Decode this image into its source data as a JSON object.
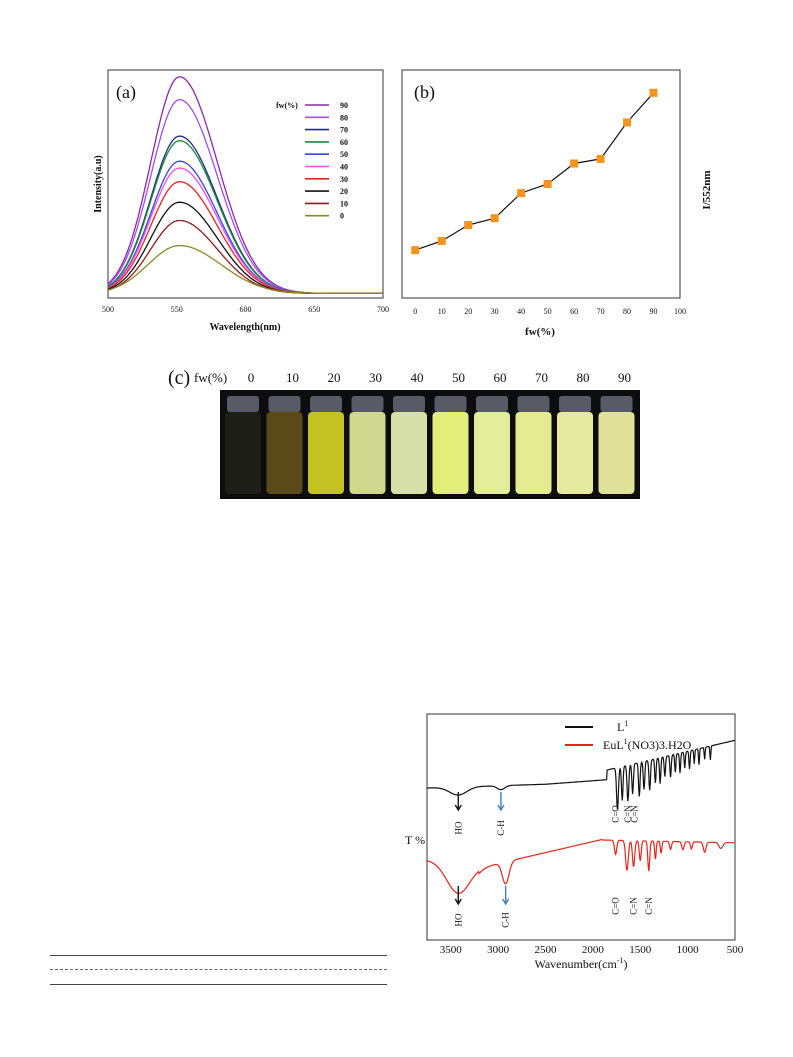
{
  "chart_data": [
    {
      "type": "line",
      "panel_label": "(a)",
      "xlabel": "Wavelength(nm)",
      "ylabel": "Intensity(a.u)",
      "xlim": [
        500,
        700
      ],
      "xticks": [
        500,
        550,
        600,
        650,
        700
      ],
      "legend_title": "fw(%)",
      "legend_position": "top-right",
      "peak_wavelength": 552,
      "series": [
        {
          "name": "90",
          "color": "#8b2aa0",
          "peak": 0.95,
          "width": 22
        },
        {
          "name": "80",
          "color": "#a24cf2",
          "peak": 0.85,
          "width": 22
        },
        {
          "name": "70",
          "color": "#1f2a8a",
          "peak": 0.69,
          "width": 22
        },
        {
          "name": "60",
          "color": "#1f8a3a",
          "peak": 0.67,
          "width": 22
        },
        {
          "name": "50",
          "color": "#3845d8",
          "peak": 0.58,
          "width": 22
        },
        {
          "name": "40",
          "color": "#f04bf0",
          "peak": 0.55,
          "width": 22
        },
        {
          "name": "30",
          "color": "#e8241e",
          "peak": 0.49,
          "width": 22
        },
        {
          "name": "20",
          "color": "#111111",
          "peak": 0.4,
          "width": 22
        },
        {
          "name": "10",
          "color": "#8b1a1a",
          "peak": 0.32,
          "width": 22
        },
        {
          "name": "0",
          "color": "#8a8a22",
          "peak": 0.21,
          "width": 24
        }
      ]
    },
    {
      "type": "line",
      "panel_label": "(b)",
      "xlabel": "fw(%)",
      "ylabel": "I/552nm",
      "xlim": [
        -5,
        100
      ],
      "xticks": [
        0,
        10,
        20,
        30,
        40,
        50,
        60,
        70,
        80,
        90,
        100
      ],
      "x": [
        0,
        10,
        20,
        30,
        40,
        50,
        60,
        70,
        80,
        90
      ],
      "values": [
        0.21,
        0.25,
        0.32,
        0.35,
        0.46,
        0.5,
        0.59,
        0.61,
        0.77,
        0.9
      ],
      "marker_color": "#f5931e",
      "line_color": "#111111"
    },
    {
      "type": "table",
      "panel_label": "(c)",
      "header": "fw(%)",
      "vial_labels": [
        "0",
        "10",
        "20",
        "30",
        "40",
        "50",
        "60",
        "70",
        "80",
        "90"
      ],
      "vial_colors": [
        "#1c1e17",
        "#5a4a1a",
        "#c2c223",
        "#cfd88e",
        "#d6e0a8",
        "#e3ee7a",
        "#e2ee9a",
        "#e3ec90",
        "#e6e9a0",
        "#e1e29a"
      ]
    },
    {
      "type": "line",
      "xlabel": "Wavenumber(cm",
      "xlabel_sup": "-1",
      "xlabel_end": ")",
      "ylabel": "T %",
      "xlim": [
        3750,
        500
      ],
      "xticks": [
        3500,
        3000,
        2500,
        2000,
        1500,
        1000,
        500
      ],
      "legend_position": "top-right",
      "series": [
        {
          "name_main": "L",
          "name_sup": "1",
          "name_end": "",
          "color": "#111111"
        },
        {
          "name_main": "EuL",
          "name_sup": "1",
          "name_end": "(NO3)3.H2O",
          "color": "#e8241e"
        }
      ],
      "annotations_top": [
        {
          "text": "HO",
          "x": 3420,
          "arrow_color": "#111111"
        },
        {
          "text": "C-H",
          "x": 2970,
          "arrow_color": "#3b7fc4"
        },
        {
          "text": "C=O",
          "x": 1760,
          "arrow_color": ""
        },
        {
          "text": "C=N",
          "x": 1630,
          "arrow_color": ""
        },
        {
          "text": "C=N",
          "x": 1560,
          "arrow_color": ""
        }
      ],
      "annotations_bottom": [
        {
          "text": "HO",
          "x": 3420,
          "arrow_color": "#111111"
        },
        {
          "text": "C-H",
          "x": 2920,
          "arrow_color": "#3b7fc4"
        },
        {
          "text": "C=O",
          "x": 1760,
          "arrow_color": ""
        },
        {
          "text": "C=N",
          "x": 1570,
          "arrow_color": ""
        },
        {
          "text": "C=N",
          "x": 1410,
          "arrow_color": ""
        }
      ]
    }
  ]
}
